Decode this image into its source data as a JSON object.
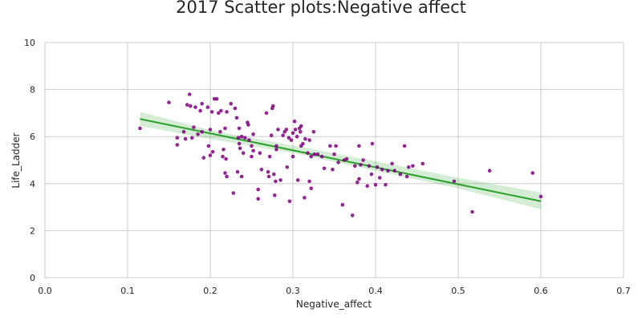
{
  "chart_data": {
    "type": "scatter",
    "title": "2017 Scatter plots:Negative affect",
    "xlabel": "Negative_affect",
    "ylabel": "Life_Ladder",
    "xlim": [
      0.0,
      0.7
    ],
    "ylim": [
      0,
      10
    ],
    "xticks": [
      0.0,
      0.1,
      0.2,
      0.3,
      0.4,
      0.5,
      0.6,
      0.7
    ],
    "xtick_labels": [
      "0.0",
      "0.1",
      "0.2",
      "0.3",
      "0.4",
      "0.5",
      "0.6",
      "0.7"
    ],
    "yticks": [
      0,
      2,
      4,
      6,
      8,
      10
    ],
    "ytick_labels": [
      "0",
      "2",
      "4",
      "6",
      "8",
      "10"
    ],
    "grid": true,
    "colors": {
      "points": "#800080",
      "fit_line": "#2ca02c",
      "confidence_band": "#2ca02c"
    },
    "regression": {
      "x": [
        0.115,
        0.6
      ],
      "y": [
        6.75,
        3.25
      ]
    },
    "confidence_band": {
      "x": [
        0.115,
        0.2,
        0.3,
        0.4,
        0.5,
        0.6
      ],
      "upper": [
        7.05,
        6.27,
        5.62,
        4.95,
        4.25,
        3.62
      ],
      "lower": [
        6.45,
        5.9,
        5.3,
        4.55,
        3.8,
        2.9
      ]
    },
    "series": [
      {
        "points": [
          [
            0.115,
            6.35
          ],
          [
            0.15,
            7.45
          ],
          [
            0.16,
            5.95
          ],
          [
            0.16,
            5.65
          ],
          [
            0.168,
            6.2
          ],
          [
            0.17,
            5.9
          ],
          [
            0.172,
            7.35
          ],
          [
            0.175,
            7.8
          ],
          [
            0.176,
            7.3
          ],
          [
            0.178,
            5.95
          ],
          [
            0.18,
            6.4
          ],
          [
            0.182,
            7.25
          ],
          [
            0.185,
            6.1
          ],
          [
            0.188,
            7.1
          ],
          [
            0.19,
            7.4
          ],
          [
            0.19,
            6.2
          ],
          [
            0.192,
            5.1
          ],
          [
            0.197,
            7.25
          ],
          [
            0.198,
            5.6
          ],
          [
            0.2,
            6.3
          ],
          [
            0.2,
            5.2
          ],
          [
            0.202,
            7.05
          ],
          [
            0.203,
            5.35
          ],
          [
            0.205,
            7.6
          ],
          [
            0.208,
            7.6
          ],
          [
            0.21,
            7.0
          ],
          [
            0.212,
            6.2
          ],
          [
            0.213,
            7.1
          ],
          [
            0.215,
            5.15
          ],
          [
            0.216,
            5.45
          ],
          [
            0.218,
            6.35
          ],
          [
            0.218,
            4.45
          ],
          [
            0.219,
            5.05
          ],
          [
            0.22,
            4.3
          ],
          [
            0.22,
            7.05
          ],
          [
            0.225,
            7.4
          ],
          [
            0.228,
            3.6
          ],
          [
            0.23,
            7.2
          ],
          [
            0.232,
            6.8
          ],
          [
            0.233,
            4.5
          ],
          [
            0.234,
            5.95
          ],
          [
            0.235,
            6.35
          ],
          [
            0.235,
            5.7
          ],
          [
            0.236,
            5.5
          ],
          [
            0.238,
            6.0
          ],
          [
            0.238,
            4.3
          ],
          [
            0.24,
            5.3
          ],
          [
            0.242,
            5.95
          ],
          [
            0.245,
            6.6
          ],
          [
            0.246,
            6.5
          ],
          [
            0.247,
            5.85
          ],
          [
            0.25,
            5.6
          ],
          [
            0.25,
            5.15
          ],
          [
            0.252,
            6.1
          ],
          [
            0.252,
            5.4
          ],
          [
            0.258,
            3.75
          ],
          [
            0.258,
            3.35
          ],
          [
            0.26,
            5.3
          ],
          [
            0.262,
            4.6
          ],
          [
            0.268,
            7.0
          ],
          [
            0.27,
            4.5
          ],
          [
            0.271,
            4.3
          ],
          [
            0.272,
            5.15
          ],
          [
            0.274,
            6.05
          ],
          [
            0.275,
            7.2
          ],
          [
            0.276,
            7.3
          ],
          [
            0.277,
            4.4
          ],
          [
            0.278,
            3.5
          ],
          [
            0.279,
            4.1
          ],
          [
            0.28,
            5.6
          ],
          [
            0.28,
            5.45
          ],
          [
            0.282,
            6.3
          ],
          [
            0.285,
            4.15
          ],
          [
            0.288,
            6.05
          ],
          [
            0.29,
            6.2
          ],
          [
            0.292,
            6.3
          ],
          [
            0.293,
            4.7
          ],
          [
            0.295,
            5.95
          ],
          [
            0.296,
            3.25
          ],
          [
            0.298,
            5.85
          ],
          [
            0.3,
            6.15
          ],
          [
            0.3,
            5.15
          ],
          [
            0.302,
            6.65
          ],
          [
            0.303,
            6.3
          ],
          [
            0.305,
            6.0
          ],
          [
            0.306,
            4.15
          ],
          [
            0.308,
            6.35
          ],
          [
            0.309,
            6.2
          ],
          [
            0.31,
            6.45
          ],
          [
            0.31,
            5.6
          ],
          [
            0.312,
            5.7
          ],
          [
            0.314,
            3.4
          ],
          [
            0.315,
            5.9
          ],
          [
            0.318,
            5.3
          ],
          [
            0.32,
            5.85
          ],
          [
            0.32,
            4.1
          ],
          [
            0.322,
            3.8
          ],
          [
            0.322,
            5.15
          ],
          [
            0.325,
            6.2
          ],
          [
            0.326,
            5.25
          ],
          [
            0.33,
            5.25
          ],
          [
            0.335,
            5.15
          ],
          [
            0.338,
            4.65
          ],
          [
            0.345,
            5.6
          ],
          [
            0.348,
            4.6
          ],
          [
            0.35,
            5.25
          ],
          [
            0.352,
            5.6
          ],
          [
            0.355,
            4.9
          ],
          [
            0.36,
            3.1
          ],
          [
            0.362,
            5.0
          ],
          [
            0.365,
            5.05
          ],
          [
            0.372,
            2.65
          ],
          [
            0.375,
            4.75
          ],
          [
            0.378,
            4.05
          ],
          [
            0.38,
            4.2
          ],
          [
            0.38,
            5.6
          ],
          [
            0.382,
            4.8
          ],
          [
            0.385,
            5.0
          ],
          [
            0.39,
            3.9
          ],
          [
            0.392,
            4.75
          ],
          [
            0.395,
            4.4
          ],
          [
            0.396,
            5.7
          ],
          [
            0.4,
            3.95
          ],
          [
            0.402,
            4.7
          ],
          [
            0.405,
            4.25
          ],
          [
            0.408,
            4.6
          ],
          [
            0.412,
            3.95
          ],
          [
            0.415,
            4.55
          ],
          [
            0.42,
            4.85
          ],
          [
            0.423,
            4.55
          ],
          [
            0.43,
            4.4
          ],
          [
            0.435,
            5.6
          ],
          [
            0.438,
            4.3
          ],
          [
            0.44,
            4.7
          ],
          [
            0.445,
            4.75
          ],
          [
            0.457,
            4.85
          ],
          [
            0.495,
            4.1
          ],
          [
            0.517,
            2.8
          ],
          [
            0.538,
            4.55
          ],
          [
            0.59,
            4.45
          ],
          [
            0.6,
            3.45
          ]
        ]
      }
    ]
  }
}
